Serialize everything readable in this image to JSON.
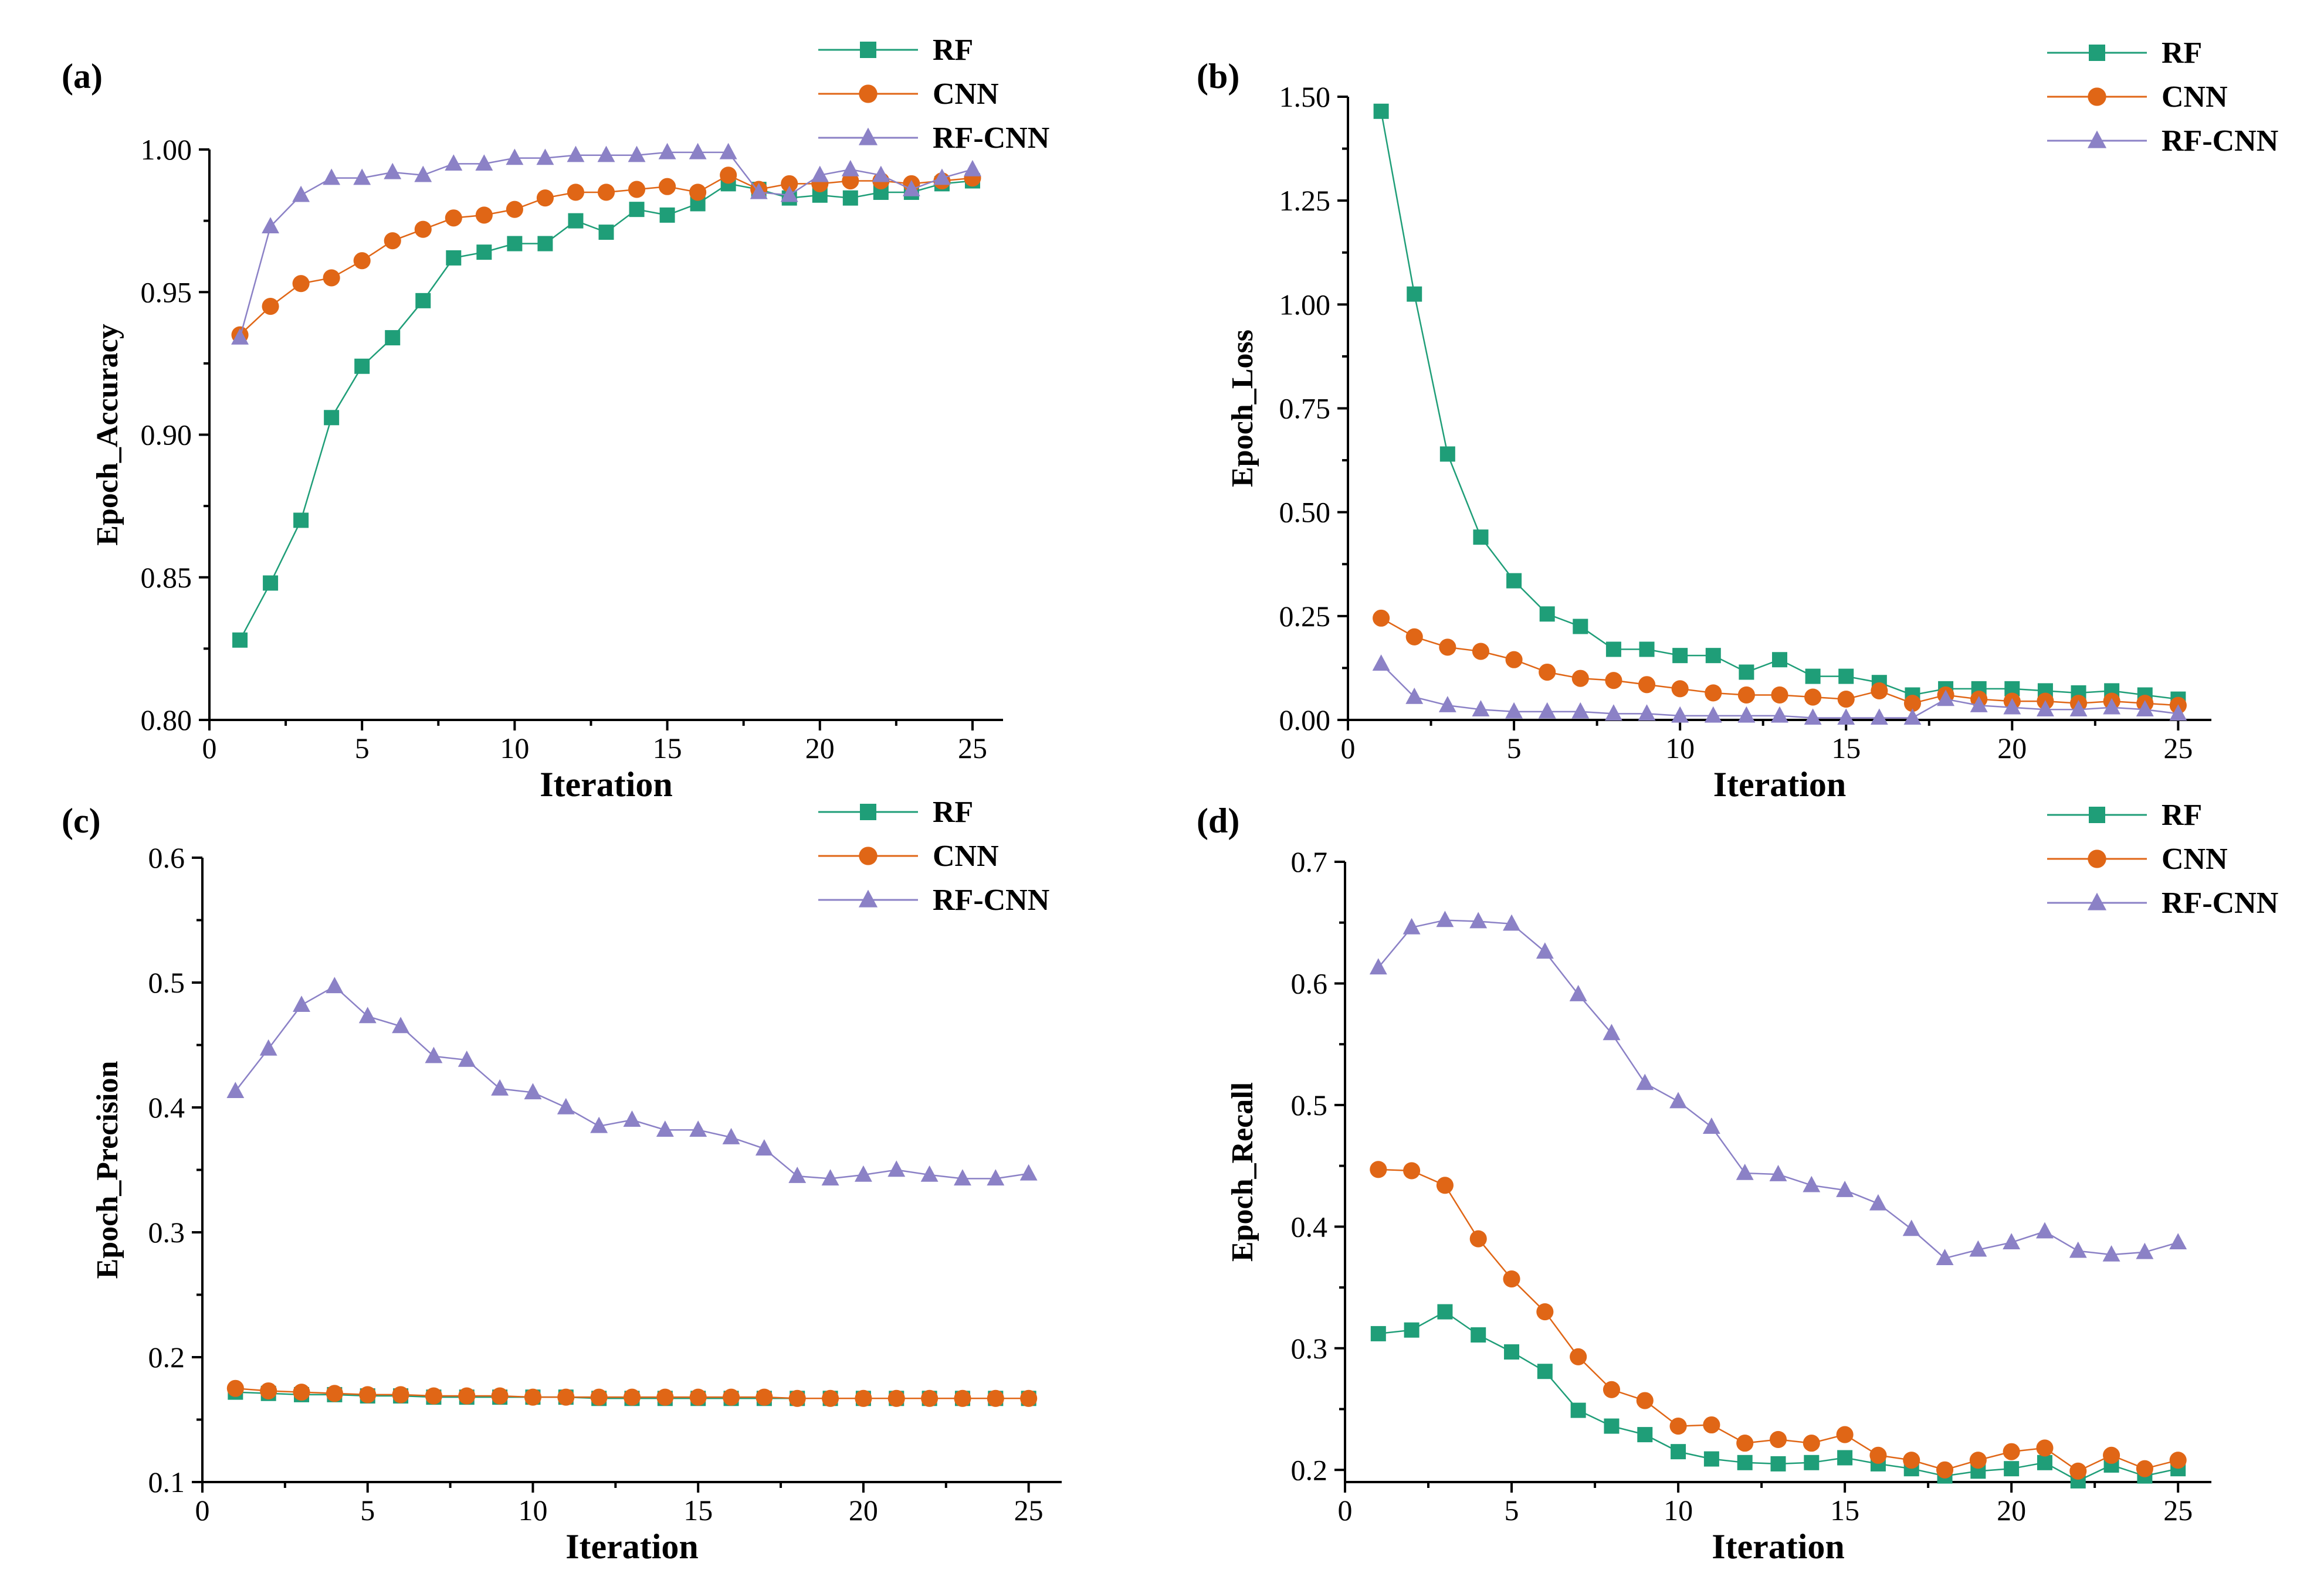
{
  "colors": {
    "RF": "#1f9e78",
    "CNN": "#e06616",
    "RF-CNN": "#8b81c6"
  },
  "markers": {
    "RF": "square",
    "CNN": "circle",
    "RF-CNN": "triangle"
  },
  "chart_data": [
    {
      "type": "line",
      "panel_label": "(a)",
      "xlabel": "Iteration",
      "ylabel": "Epoch_Accuracy",
      "xlim": [
        0,
        26
      ],
      "ylim": [
        0.8,
        1.0
      ],
      "xticks": [
        0,
        5,
        10,
        15,
        20,
        25
      ],
      "xtick_labels": [
        "0",
        "5",
        "10",
        "15",
        "20",
        "25"
      ],
      "yticks": [
        0.8,
        0.85,
        0.9,
        0.95,
        1.0
      ],
      "ytick_labels": [
        "0.80",
        "0.85",
        "0.90",
        "0.95",
        "1.00"
      ],
      "legend_position": "top-right",
      "x": [
        1,
        2,
        3,
        4,
        5,
        6,
        7,
        8,
        9,
        10,
        11,
        12,
        13,
        14,
        15,
        16,
        17,
        18,
        19,
        20,
        21,
        22,
        23,
        24,
        25
      ],
      "series": [
        {
          "name": "RF",
          "values": [
            0.828,
            0.848,
            0.87,
            0.906,
            0.924,
            0.934,
            0.947,
            0.962,
            0.964,
            0.967,
            0.967,
            0.975,
            0.971,
            0.979,
            0.977,
            0.981,
            0.988,
            0.986,
            0.983,
            0.984,
            0.983,
            0.985,
            0.985,
            0.988,
            0.989
          ]
        },
        {
          "name": "CNN",
          "values": [
            0.935,
            0.945,
            0.953,
            0.955,
            0.961,
            0.968,
            0.972,
            0.976,
            0.977,
            0.979,
            0.983,
            0.985,
            0.985,
            0.986,
            0.987,
            0.985,
            0.991,
            0.986,
            0.988,
            0.988,
            0.989,
            0.989,
            0.988,
            0.989,
            0.99
          ]
        },
        {
          "name": "RF-CNN",
          "values": [
            0.934,
            0.973,
            0.984,
            0.99,
            0.99,
            0.992,
            0.991,
            0.995,
            0.995,
            0.997,
            0.997,
            0.998,
            0.998,
            0.998,
            0.999,
            0.999,
            0.999,
            0.985,
            0.984,
            0.991,
            0.993,
            0.991,
            0.986,
            0.99,
            0.993
          ]
        }
      ]
    },
    {
      "type": "line",
      "panel_label": "(b)",
      "xlabel": "Iteration",
      "ylabel": "Epoch_Loss",
      "xlim": [
        0,
        26
      ],
      "ylim": [
        0.0,
        1.5
      ],
      "xticks": [
        0,
        5,
        10,
        15,
        20,
        25
      ],
      "xtick_labels": [
        "0",
        "5",
        "10",
        "15",
        "20",
        "25"
      ],
      "yticks": [
        0.0,
        0.25,
        0.5,
        0.75,
        1.0,
        1.25,
        1.5
      ],
      "ytick_labels": [
        "0.00",
        "0.25",
        "0.50",
        "0.75",
        "1.00",
        "1.25",
        "1.50"
      ],
      "legend_position": "top-right",
      "x": [
        1,
        2,
        3,
        4,
        5,
        6,
        7,
        8,
        9,
        10,
        11,
        12,
        13,
        14,
        15,
        16,
        17,
        18,
        19,
        20,
        21,
        22,
        23,
        24,
        25
      ],
      "series": [
        {
          "name": "RF",
          "values": [
            1.465,
            1.025,
            0.64,
            0.44,
            0.335,
            0.255,
            0.225,
            0.17,
            0.17,
            0.155,
            0.155,
            0.115,
            0.145,
            0.105,
            0.105,
            0.09,
            0.06,
            0.075,
            0.075,
            0.075,
            0.07,
            0.065,
            0.07,
            0.06,
            0.05
          ]
        },
        {
          "name": "CNN",
          "values": [
            0.245,
            0.2,
            0.175,
            0.165,
            0.145,
            0.115,
            0.1,
            0.095,
            0.085,
            0.075,
            0.065,
            0.06,
            0.06,
            0.055,
            0.05,
            0.07,
            0.04,
            0.06,
            0.05,
            0.045,
            0.045,
            0.04,
            0.045,
            0.04,
            0.035
          ]
        },
        {
          "name": "RF-CNN",
          "values": [
            0.135,
            0.055,
            0.035,
            0.025,
            0.02,
            0.02,
            0.02,
            0.015,
            0.015,
            0.01,
            0.01,
            0.01,
            0.01,
            0.005,
            0.005,
            0.005,
            0.005,
            0.05,
            0.035,
            0.03,
            0.025,
            0.025,
            0.03,
            0.025,
            0.015
          ]
        }
      ]
    },
    {
      "type": "line",
      "panel_label": "(c)",
      "xlabel": "Iteration",
      "ylabel": "Epoch_Precision",
      "xlim": [
        0,
        26
      ],
      "ylim": [
        0.1,
        0.6
      ],
      "xticks": [
        0,
        5,
        10,
        15,
        20,
        25
      ],
      "xtick_labels": [
        "0",
        "5",
        "10",
        "15",
        "20",
        "25"
      ],
      "yticks": [
        0.1,
        0.2,
        0.3,
        0.4,
        0.5,
        0.6
      ],
      "ytick_labels": [
        "0.1",
        "0.2",
        "0.3",
        "0.4",
        "0.5",
        "0.6"
      ],
      "legend_position": "top-right",
      "x": [
        1,
        2,
        3,
        4,
        5,
        6,
        7,
        8,
        9,
        10,
        11,
        12,
        13,
        14,
        15,
        16,
        17,
        18,
        19,
        20,
        21,
        22,
        23,
        24,
        25
      ],
      "series": [
        {
          "name": "RF",
          "values": [
            0.172,
            0.171,
            0.17,
            0.17,
            0.169,
            0.169,
            0.168,
            0.168,
            0.168,
            0.168,
            0.168,
            0.167,
            0.167,
            0.167,
            0.167,
            0.167,
            0.167,
            0.167,
            0.167,
            0.167,
            0.167,
            0.167,
            0.167,
            0.167,
            0.167
          ]
        },
        {
          "name": "CNN",
          "values": [
            0.175,
            0.173,
            0.172,
            0.171,
            0.17,
            0.17,
            0.169,
            0.169,
            0.169,
            0.168,
            0.168,
            0.168,
            0.168,
            0.168,
            0.168,
            0.168,
            0.168,
            0.167,
            0.167,
            0.167,
            0.167,
            0.167,
            0.167,
            0.167,
            0.167
          ]
        },
        {
          "name": "RF-CNN",
          "values": [
            0.413,
            0.447,
            0.482,
            0.497,
            0.473,
            0.465,
            0.441,
            0.438,
            0.415,
            0.412,
            0.4,
            0.385,
            0.39,
            0.382,
            0.382,
            0.376,
            0.367,
            0.345,
            0.343,
            0.346,
            0.35,
            0.346,
            0.343,
            0.343,
            0.347
          ]
        }
      ]
    },
    {
      "type": "line",
      "panel_label": "(d)",
      "xlabel": "Iteration",
      "ylabel": "Epoch_Recall",
      "xlim": [
        0,
        26
      ],
      "ylim": [
        0.19,
        0.7
      ],
      "xticks": [
        0,
        5,
        10,
        15,
        20,
        25
      ],
      "xtick_labels": [
        "0",
        "5",
        "10",
        "15",
        "20",
        "25"
      ],
      "yticks": [
        0.2,
        0.3,
        0.4,
        0.5,
        0.6,
        0.7
      ],
      "ytick_labels": [
        "0.2",
        "0.3",
        "0.4",
        "0.5",
        "0.6",
        "0.7"
      ],
      "legend_position": "top-right",
      "x": [
        1,
        2,
        3,
        4,
        5,
        6,
        7,
        8,
        9,
        10,
        11,
        12,
        13,
        14,
        15,
        16,
        17,
        18,
        19,
        20,
        21,
        22,
        23,
        24,
        25
      ],
      "series": [
        {
          "name": "RF",
          "values": [
            0.312,
            0.315,
            0.33,
            0.311,
            0.297,
            0.281,
            0.249,
            0.236,
            0.229,
            0.215,
            0.209,
            0.206,
            0.205,
            0.206,
            0.21,
            0.205,
            0.201,
            0.195,
            0.199,
            0.201,
            0.206,
            0.191,
            0.204,
            0.195,
            0.201
          ]
        },
        {
          "name": "CNN",
          "values": [
            0.447,
            0.446,
            0.434,
            0.39,
            0.357,
            0.33,
            0.293,
            0.266,
            0.257,
            0.236,
            0.237,
            0.222,
            0.225,
            0.222,
            0.229,
            0.212,
            0.208,
            0.2,
            0.208,
            0.215,
            0.218,
            0.199,
            0.212,
            0.201,
            0.208
          ]
        },
        {
          "name": "RF-CNN",
          "values": [
            0.613,
            0.646,
            0.652,
            0.651,
            0.649,
            0.626,
            0.591,
            0.559,
            0.518,
            0.503,
            0.482,
            0.444,
            0.443,
            0.434,
            0.43,
            0.419,
            0.398,
            0.374,
            0.381,
            0.387,
            0.396,
            0.38,
            0.377,
            0.379,
            0.387
          ]
        }
      ]
    }
  ]
}
